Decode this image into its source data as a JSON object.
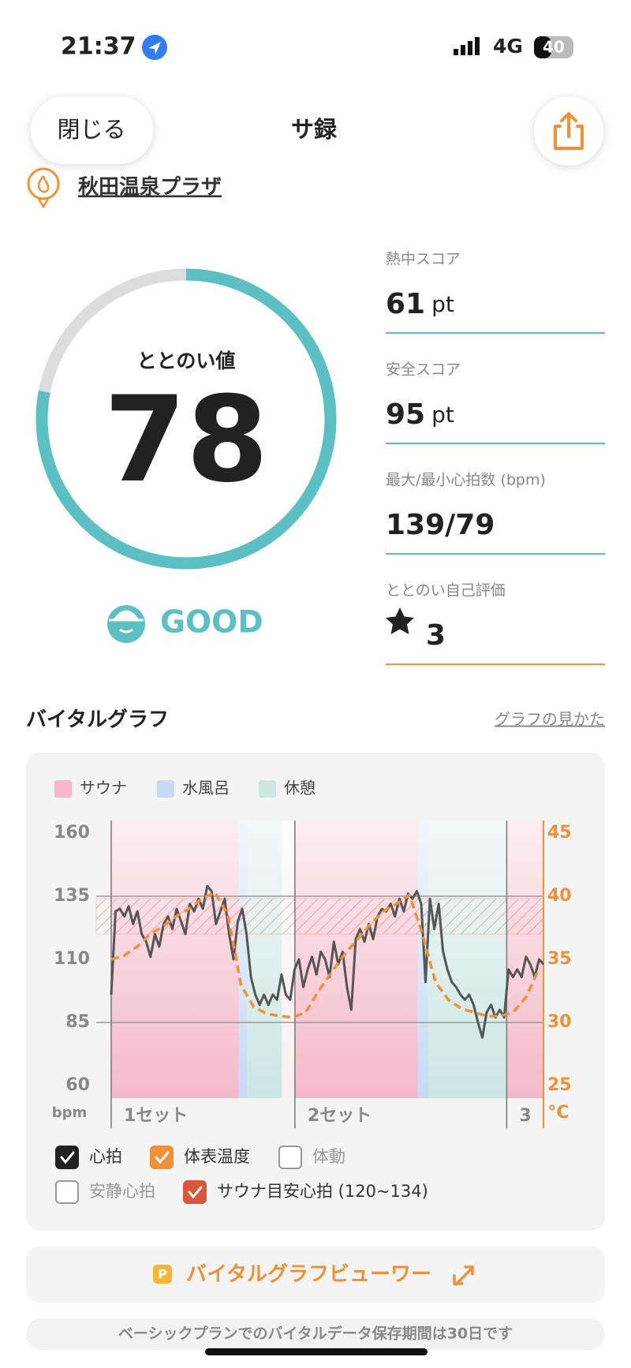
{
  "status_bar": {
    "time": "21:37",
    "network": "4G",
    "battery": "40"
  },
  "header": {
    "close": "閉じる",
    "title": "サ録"
  },
  "location": "秋田温泉プラザ",
  "totonoi": {
    "label": "ととのい値",
    "value": 78,
    "range": [
      0,
      100
    ],
    "rating": "GOOD"
  },
  "stats": [
    {
      "label": "熱中スコア",
      "value": 61,
      "unit": "pt",
      "color": "#5bbfc4"
    },
    {
      "label": "安全スコア",
      "value": 95,
      "unit": "pt",
      "color": "#5bbfc4"
    },
    {
      "label": "最大/最小心拍数 (bpm)",
      "value": "139/79",
      "color": "#5bbfc4"
    },
    {
      "label": "ととのい自己評価",
      "value": 3,
      "icon": "star",
      "color": "#f0913a"
    }
  ],
  "vital_graph": {
    "title": "バイタルグラフ",
    "link": "グラフの見かた",
    "legend": [
      {
        "name": "サウナ",
        "color": "#f4b9cb"
      },
      {
        "name": "水風呂",
        "color": "#c5daf4"
      },
      {
        "name": "休憩",
        "color": "#cce6e3"
      }
    ],
    "ylim": [
      55,
      165
    ],
    "yticks": [
      160,
      135,
      110,
      85,
      60
    ],
    "y_unit": "bpm",
    "y2lim": [
      24,
      46
    ],
    "y2ticks": [
      45,
      40,
      35,
      30,
      25
    ],
    "y2_unit": "°C",
    "gridlines": [
      135,
      85
    ],
    "xlim": [
      0,
      100
    ],
    "sets": [
      {
        "label": "1セット",
        "start": 0
      },
      {
        "label": "2セット",
        "start": 42.5
      },
      {
        "label": "3",
        "start": 91.5
      }
    ],
    "phases": [
      {
        "legend": 0,
        "from": 0,
        "to": 29.5
      },
      {
        "legend": 1,
        "from": 29.5,
        "to": 31.5
      },
      {
        "legend": 2,
        "from": 31.5,
        "to": 39.5
      },
      {
        "legend": 0,
        "from": 42.5,
        "to": 71
      },
      {
        "legend": 1,
        "from": 71,
        "to": 73.5
      },
      {
        "legend": 2,
        "from": 73.5,
        "to": 91.5
      },
      {
        "legend": 0,
        "from": 91.5,
        "to": 100
      }
    ],
    "target": {
      "low": 120,
      "high": 134,
      "color": "#e8735a"
    },
    "heart_rate": {
      "color": "#555555",
      "values": [
        96,
        129,
        130,
        127,
        131,
        124,
        129,
        120,
        117,
        111,
        120,
        115,
        124,
        127,
        122,
        130,
        125,
        120,
        132,
        129,
        134,
        130,
        139,
        137,
        124,
        129,
        134,
        120,
        110,
        125,
        130,
        120,
        103,
        96,
        92,
        96,
        92,
        96,
        94,
        104,
        96,
        94,
        106,
        110,
        99,
        106,
        111,
        104,
        113,
        110,
        103,
        117,
        108,
        113,
        99,
        90,
        118,
        122,
        117,
        124,
        118,
        127,
        130,
        129,
        132,
        127,
        134,
        129,
        136,
        134,
        137,
        132,
        101,
        134,
        122,
        132,
        113,
        106,
        101,
        99,
        96,
        94,
        96,
        92,
        85,
        79,
        89,
        92,
        87,
        90,
        87,
        106,
        103,
        106,
        103,
        111,
        108,
        103,
        110,
        108
      ]
    },
    "temperature": {
      "color": "#f0913a",
      "x": [
        0,
        3,
        6,
        9,
        12,
        15,
        18,
        21,
        24,
        27,
        30,
        33,
        36,
        39,
        42,
        45,
        48,
        51,
        54,
        57,
        60,
        63,
        66,
        69,
        72,
        75,
        78,
        81,
        84,
        87,
        90,
        93,
        96,
        99
      ],
      "values": [
        35,
        35.3,
        36,
        37,
        37.6,
        38.4,
        39,
        39.8,
        40.3,
        38.5,
        33,
        31.2,
        30.7,
        30.5,
        30.4,
        30.8,
        32.5,
        34,
        35.4,
        36.6,
        37.8,
        38.8,
        39.4,
        40.1,
        37,
        33.2,
        31.8,
        31.1,
        30.8,
        30.5,
        30.5,
        30.8,
        32,
        34.3
      ]
    },
    "toggles": [
      {
        "label": "心拍",
        "checked": true,
        "color": "#222222"
      },
      {
        "label": "体表温度",
        "checked": true,
        "color": "#f0913a"
      },
      {
        "label": "体動",
        "checked": false
      },
      {
        "label": "安静心拍",
        "checked": false
      },
      {
        "label": "サウナ目安心拍 (120~134)",
        "checked": true,
        "color": "#d9573a"
      }
    ]
  },
  "viewer_button": {
    "badge": "P",
    "label": "バイタルグラフビューワー"
  },
  "footer_note": "ベーシックプランでのバイタルデータ保存期間は30日です"
}
